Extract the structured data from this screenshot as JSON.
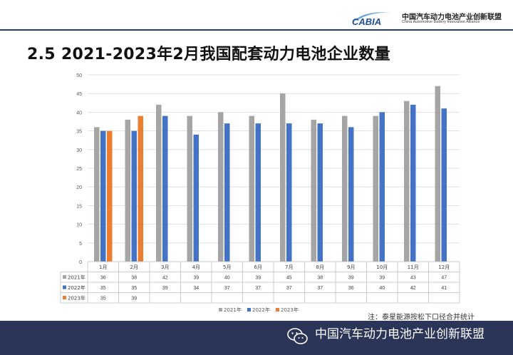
{
  "header": {
    "logo_text": "CABIA",
    "org_cn": "中国汽车动力电池产业创新联盟",
    "org_en": "China Automotive Battery Innovation Alliance"
  },
  "title": "2.5 2021-2023年2月我国配套动力电池企业数量",
  "note": "注：泰星能源按松下口径合并统计",
  "footer": {
    "text": "中国汽车动力电池产业创新联盟"
  },
  "colors": {
    "2021": "#a5a5a5",
    "2022": "#4472c4",
    "2023": "#ed7d31"
  },
  "chart_data": {
    "type": "bar",
    "title": "",
    "categories": [
      "1月",
      "2月",
      "3月",
      "4月",
      "5月",
      "6月",
      "7月",
      "8月",
      "9月",
      "10月",
      "11月",
      "12月"
    ],
    "series": [
      {
        "name": "2021年",
        "values": [
          36,
          38,
          42,
          39,
          40,
          39,
          45,
          38,
          39,
          39,
          43,
          47
        ]
      },
      {
        "name": "2022年",
        "values": [
          35,
          35,
          39,
          34,
          37,
          37,
          37,
          37,
          36,
          40,
          42,
          41
        ]
      },
      {
        "name": "2023年",
        "values": [
          35,
          39,
          null,
          null,
          null,
          null,
          null,
          null,
          null,
          null,
          null,
          null
        ]
      }
    ],
    "ylim": [
      0,
      50
    ],
    "yticks": [
      0,
      5,
      10,
      15,
      20,
      25,
      30,
      35,
      40,
      45,
      50
    ],
    "grid": true,
    "legend": "bottom"
  }
}
